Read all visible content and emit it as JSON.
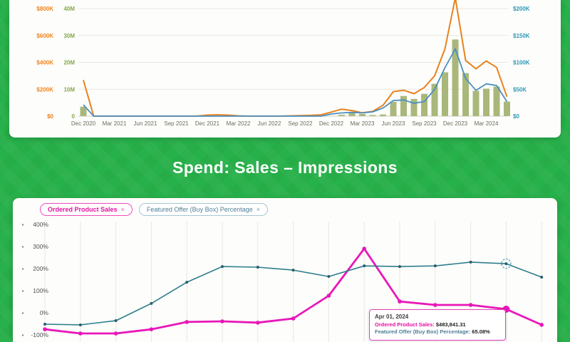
{
  "ui": {
    "section_title": "Spend: Sales – Impressions",
    "chip_close_glyph": "×",
    "colors": {
      "background_green": "#27b14a",
      "panel": "#fdfdfb",
      "grid": "#e9e8e2",
      "axis_line": "#d2d1c8",
      "x_label": "#6d6d60",
      "y_label_dark": "#4f4f4f",
      "orange": "#e8821f",
      "blue": "#4a8fc0",
      "olive_bar": "#a9b87a",
      "teal_axis": "#2d9ab8",
      "green_axis": "#84a84e",
      "pink": "#e916b8",
      "dark_teal": "#2f7e8e"
    }
  },
  "chart_data": [
    {
      "id": "top-chart",
      "type": "bar",
      "subtype": "mixed-bar-line",
      "title": "",
      "x_quarter_labels": [
        "Dec 2020",
        "Mar 2021",
        "Jun 2021",
        "Sep 2021",
        "Dec 2021",
        "Mar 2022",
        "Jun 2022",
        "Sep 2022",
        "Dec 2022",
        "Mar 2023",
        "Jun 2023",
        "Sep 2023",
        "Dec 2023",
        "Mar 2024"
      ],
      "axes": {
        "left_outer": {
          "ticks": [
            "$800K",
            "$600K",
            "$400K",
            "$200K",
            "$0"
          ],
          "max": 800,
          "color": "#f0831d"
        },
        "left_inner": {
          "ticks": [
            "40M",
            "30M",
            "20M",
            "10M",
            "0"
          ],
          "max": 40,
          "color": "#84a84e"
        },
        "right": {
          "ticks": [
            "$200K",
            "$150K",
            "$100K",
            "$50K",
            "$0"
          ],
          "max": 200,
          "color": "#2d9ab8"
        }
      },
      "series": [
        {
          "name": "impressions",
          "type": "bar",
          "axis": "left_inner",
          "color": "#a9b87a",
          "values": [
            3.5,
            0,
            0,
            0,
            0,
            0,
            0,
            0,
            0,
            0,
            0,
            0,
            0,
            0,
            0,
            0,
            0,
            0,
            0,
            0,
            0,
            0,
            0,
            0,
            0,
            0.5,
            1.2,
            0.8,
            0.4,
            0.6,
            5.3,
            7.5,
            6.4,
            8.3,
            12,
            16.3,
            28.5,
            16,
            9.4,
            10.2,
            11,
            5.4
          ]
        },
        {
          "name": "spend",
          "type": "line",
          "axis": "left_outer",
          "color": "#e8821f",
          "values": [
            268,
            0,
            0,
            0,
            0,
            0,
            0,
            0,
            0,
            0,
            0,
            0,
            8,
            10,
            8,
            2,
            0,
            0,
            0,
            0,
            2,
            4,
            6,
            10,
            30,
            52,
            42,
            25,
            35,
            80,
            182,
            193,
            167,
            213,
            300,
            500,
            880,
            415,
            352,
            410,
            362,
            144
          ]
        },
        {
          "name": "sales",
          "type": "line",
          "axis": "right",
          "color": "#4a8fc0",
          "values": [
            21,
            0,
            0,
            0,
            0,
            0,
            0,
            0,
            0,
            0,
            0,
            0,
            0,
            0,
            0,
            0,
            0,
            0,
            0,
            0,
            0,
            0,
            0,
            0,
            4,
            6,
            7,
            6,
            8,
            15,
            29,
            30,
            24,
            27,
            50,
            90,
            125,
            70,
            48,
            60,
            57,
            27
          ]
        }
      ]
    },
    {
      "id": "bottom-chart",
      "type": "line",
      "y_ticks": [
        "400%",
        "300%",
        "200%",
        "100%",
        "0%",
        "-100%"
      ],
      "y_tick_values": [
        400,
        300,
        200,
        100,
        0,
        -100
      ],
      "series": [
        {
          "name": "Ordered Product Sales",
          "color": "#e916b8",
          "values": [
            -65,
            -84,
            -84,
            -65,
            -32,
            -29,
            -35,
            -16,
            87,
            300,
            61,
            45,
            45,
            26,
            -45
          ]
        },
        {
          "name": "Featured Offer (Buy Box) Percentage",
          "color": "#2f7e8e",
          "values": [
            -42,
            -45,
            -26,
            52,
            148,
            219,
            216,
            203,
            174,
            222,
            219,
            222,
            239,
            232,
            171
          ]
        }
      ],
      "highlight_index": 13,
      "tooltip": {
        "date": "Apr 01, 2024",
        "rows": [
          {
            "label": "Ordered Product Sales:",
            "value": "$483,841.31",
            "color": "#e5109f"
          },
          {
            "label": "Featured Offer (Buy Box) Percentage:",
            "value": "65.08%",
            "color": "#4e7f96"
          }
        ]
      }
    }
  ]
}
